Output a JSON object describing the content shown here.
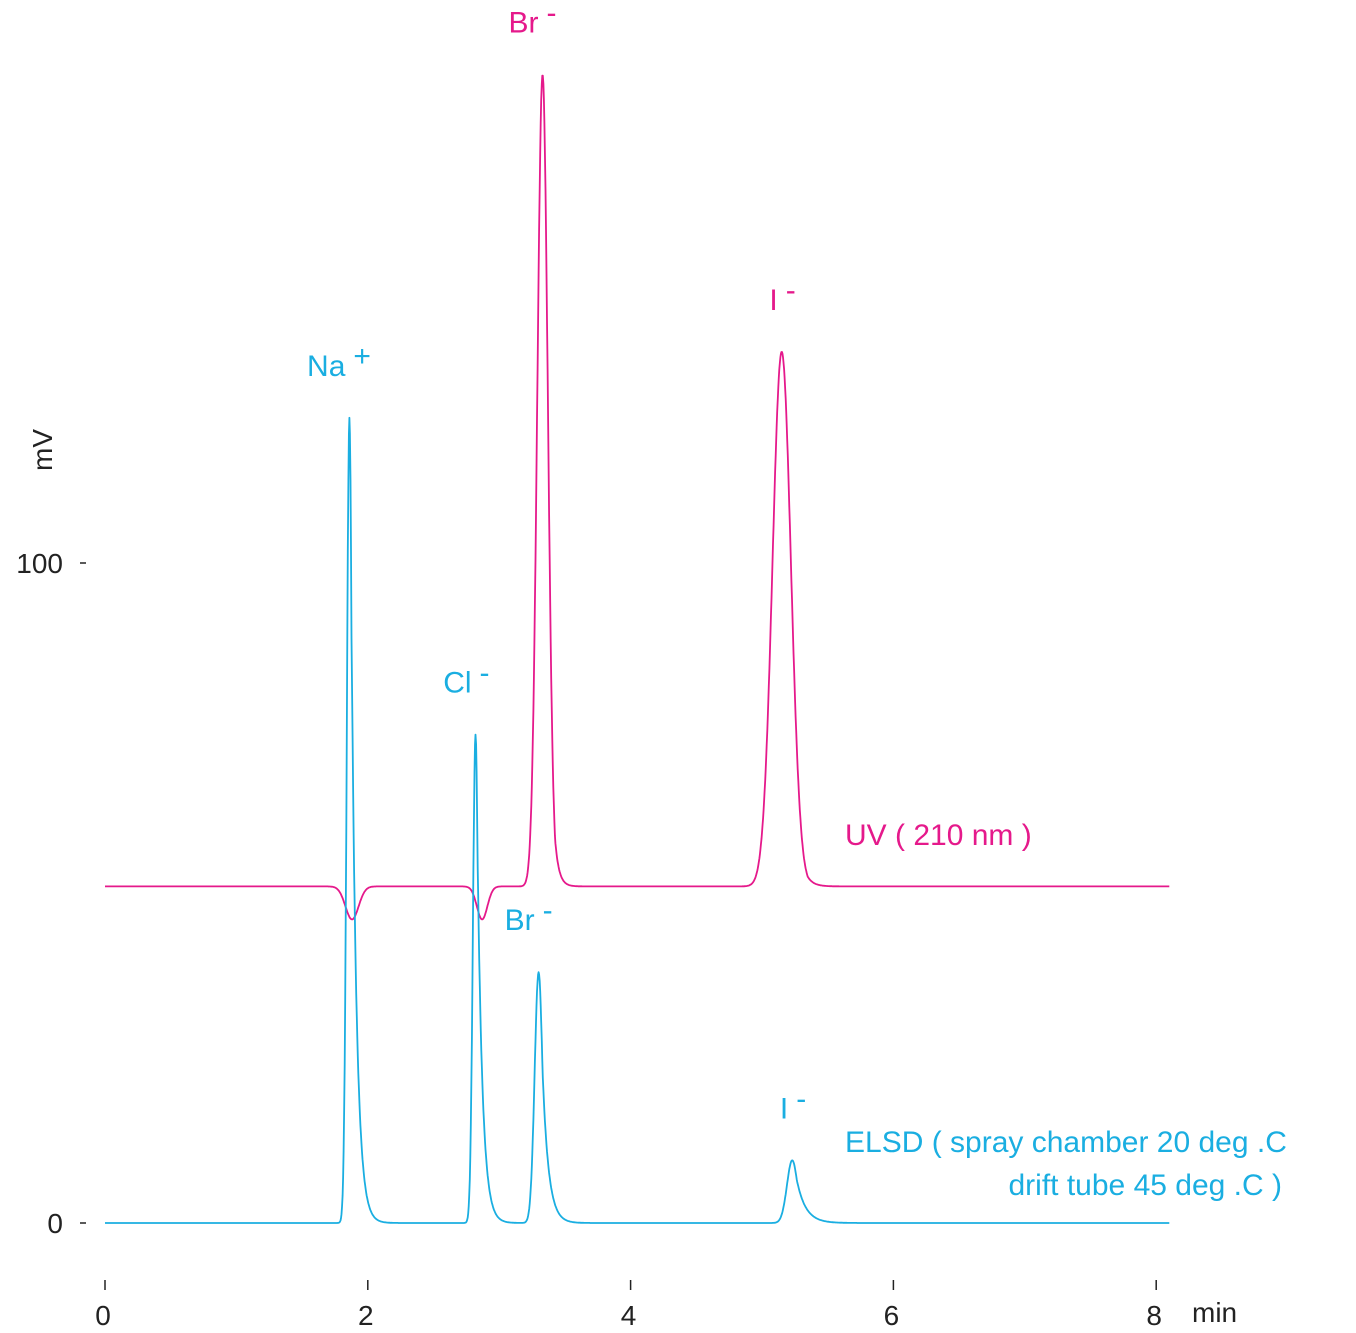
{
  "chart_data": {
    "type": "line",
    "title": "",
    "xlabel": "min",
    "ylabel": "mV",
    "xlim": [
      0,
      8.1
    ],
    "ylim": [
      0,
      100
    ],
    "x_ticks": [
      "0",
      "2",
      "4",
      "6",
      "8"
    ],
    "y_ticks": [
      "0",
      "100"
    ],
    "grid": false,
    "colors": {
      "uv": "#e5198b",
      "elsd": "#1aaee1",
      "axis": "#222222"
    },
    "series": [
      {
        "key": "uv",
        "name": "UV ( 210 nm )",
        "baseline": 51,
        "peaks": [
          {
            "ion": "Na",
            "charge": "+",
            "rt": 1.88,
            "height": -5,
            "width": 0.05,
            "tail": 0.02,
            "labeled": false
          },
          {
            "ion": "Cl",
            "charge": "-",
            "rt": 2.87,
            "height": -5,
            "width": 0.04,
            "tail": 0.02,
            "labeled": false
          },
          {
            "ion": "Br",
            "charge": "-",
            "rt": 3.33,
            "height": 123,
            "width": 0.04,
            "tail": 0.04,
            "labeled": true
          },
          {
            "ion": "I",
            "charge": "-",
            "rt": 5.15,
            "height": 81,
            "width": 0.07,
            "tail": 0.06,
            "labeled": true
          }
        ]
      },
      {
        "key": "elsd",
        "name": "ELSD ( spray chamber 20 deg .C\ndrift tube 45 deg .C )",
        "name_line1": "ELSD ( spray chamber 20 deg .C",
        "name_line2": "drift tube 45 deg .C )",
        "baseline": 0,
        "peaks": [
          {
            "ion": "Na",
            "charge": "+",
            "rt": 1.86,
            "height": 122,
            "width": 0.02,
            "tail": 0.05,
            "labeled": true
          },
          {
            "ion": "Cl",
            "charge": "-",
            "rt": 2.82,
            "height": 74,
            "width": 0.02,
            "tail": 0.05,
            "labeled": true
          },
          {
            "ion": "Br",
            "charge": "-",
            "rt": 3.3,
            "height": 38,
            "width": 0.03,
            "tail": 0.06,
            "labeled": true
          },
          {
            "ion": "I",
            "charge": "-",
            "rt": 5.23,
            "height": 9.5,
            "width": 0.04,
            "tail": 0.09,
            "labeled": true
          }
        ]
      }
    ]
  }
}
